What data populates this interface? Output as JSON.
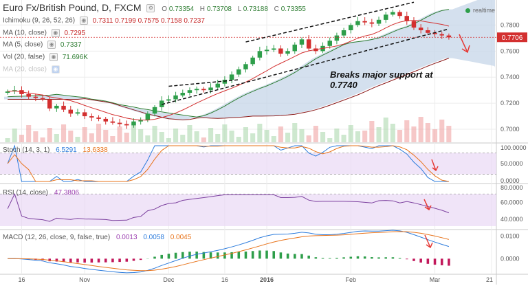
{
  "header": {
    "symbol_line": "Euro Fx/British Pound, D, FXCM",
    "ohlc": [
      {
        "k": "O",
        "v": "0.73354"
      },
      {
        "k": "H",
        "v": "0.73708"
      },
      {
        "k": "L",
        "v": "0.73188"
      },
      {
        "k": "C",
        "v": "0.73355"
      }
    ],
    "realtime": "realtime"
  },
  "indicators": {
    "ichimoku_label": "Ichimoku (9, 26, 52, 26)",
    "ichimoku_values": "0.7311 0.7199 0.7575 0.7158 0.7237",
    "ma10_label": "MA (10, close)",
    "ma10_value": "0.7295",
    "ma5_label": "MA (5, close)",
    "ma5_value": "0.7337",
    "vol_label": "Vol (20, false)",
    "vol_value": "71.696K",
    "ma_hidden_label": "MA (20, close)"
  },
  "annotation": {
    "line1": "Breaks major support at",
    "line2": "0.7740"
  },
  "stoch": {
    "label": "Stoch (14, 3, 1)",
    "k": "6.5291",
    "d": "13.6338"
  },
  "rsi": {
    "label": "RSI (14, close)",
    "value": "47.3806"
  },
  "macd": {
    "label": "MACD (12, 26, close, 9, false, true)",
    "hist": "0.0013",
    "macd": "0.0058",
    "signal": "0.0045"
  },
  "last_price": "0.7706",
  "colors": {
    "up": "#26a69a",
    "down": "#ef5350",
    "candle_up": "#2e9e4a",
    "candle_down": "#d32f2f",
    "cloud": "#c5d5e8",
    "ma_red": "#d32f2f",
    "span_green": "#2e7d32",
    "span_red": "#8b1a1a",
    "stoch_k": "#2b7bdc",
    "stoch_d": "#e8731a",
    "rsi": "#7b3f9e",
    "band": "#e9d8f5"
  },
  "chart_data": [
    {
      "type": "candlestick",
      "title": "Euro Fx/British Pound, D, FXCM",
      "ylim": [
        0.69,
        0.795
      ],
      "x_ticks": [
        "16",
        "Nov",
        "Dec",
        "16",
        "2016",
        "Feb",
        "Mar",
        "21"
      ],
      "y_ticks": [
        "0.7800",
        "0.7600",
        "0.7400",
        "0.7200",
        "0.7000"
      ],
      "close_series": [
        0.729,
        0.73,
        0.727,
        0.725,
        0.724,
        0.723,
        0.716,
        0.718,
        0.715,
        0.712,
        0.713,
        0.71,
        0.709,
        0.708,
        0.706,
        0.705,
        0.704,
        0.703,
        0.706,
        0.707,
        0.712,
        0.717,
        0.722,
        0.723,
        0.726,
        0.728,
        0.73,
        0.731,
        0.73,
        0.732,
        0.735,
        0.738,
        0.742,
        0.746,
        0.75,
        0.755,
        0.76,
        0.761,
        0.762,
        0.758,
        0.76,
        0.765,
        0.769,
        0.762,
        0.76,
        0.764,
        0.768,
        0.772,
        0.776,
        0.78,
        0.783,
        0.782,
        0.781,
        0.784,
        0.788,
        0.79,
        0.787,
        0.783,
        0.778,
        0.776,
        0.774,
        0.773,
        0.772,
        0.7706
      ],
      "annotation": "Breaks major support at 0.7740",
      "last_price": 0.7706
    },
    {
      "type": "line",
      "title": "Stoch (14, 3, 1)",
      "ylim": [
        0,
        100
      ],
      "y_ticks": [
        "100.0000",
        "50.0000",
        "0.0000"
      ],
      "series": [
        {
          "name": "%K",
          "value": 6.5291
        },
        {
          "name": "%D",
          "value": 13.6338
        }
      ]
    },
    {
      "type": "line",
      "title": "RSI (14, close)",
      "ylim": [
        30,
        80
      ],
      "y_ticks": [
        "80.0000",
        "60.0000",
        "40.0000"
      ],
      "series": [
        {
          "name": "RSI",
          "value": 47.3806
        }
      ]
    },
    {
      "type": "bar",
      "title": "MACD (12, 26, close, 9, false, true)",
      "ylim": [
        -0.006,
        0.012
      ],
      "y_ticks": [
        "0.0100",
        "0.0000"
      ],
      "series": [
        {
          "name": "Histogram",
          "value": 0.0013
        },
        {
          "name": "MACD",
          "value": 0.0058
        },
        {
          "name": "Signal",
          "value": 0.0045
        }
      ]
    }
  ]
}
